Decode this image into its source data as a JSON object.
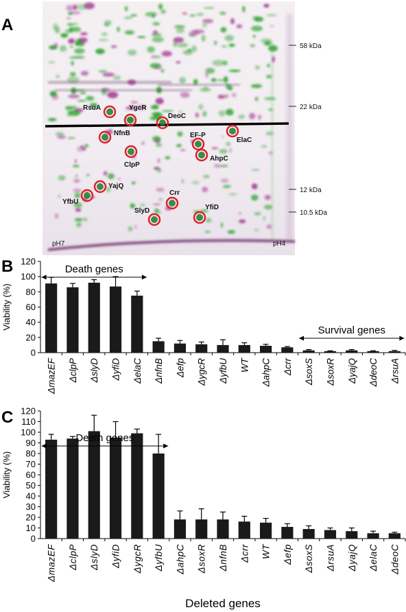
{
  "panels": {
    "a": "A",
    "b": "B",
    "c": "C"
  },
  "gel": {
    "mw_markers": [
      {
        "label": "58 kDa"
      },
      {
        "label": "22 kDa"
      },
      {
        "label": "12 kDa"
      },
      {
        "label": "10.5 kDa"
      }
    ],
    "ph_left": "pH7",
    "ph_right": "pH4",
    "proteins": [
      "RsuA",
      "YgcR",
      "DeoC",
      "NfnB",
      "EF-P",
      "ElaC",
      "ClpP",
      "AhpC",
      "YajQ",
      "YfbU",
      "Crr",
      "SlyD",
      "YfiD"
    ],
    "colors": {
      "green": "#2ca02c",
      "magenta": "#a0308c",
      "circle": "#e0202a",
      "background": "#f3eef3"
    }
  },
  "chart_data": [
    {
      "type": "bar",
      "panel": "B",
      "ylabel": "Viability (%)",
      "ylim": [
        0,
        120
      ],
      "yticks": [
        0,
        20,
        40,
        60,
        80,
        100,
        120
      ],
      "categories": [
        "ΔmazEF",
        "ΔclpP",
        "ΔslyD",
        "ΔyfiD",
        "ΔelaC",
        "ΔnfnB",
        "Δefp",
        "ΔygcR",
        "ΔyfbU",
        "WT",
        "ΔahpC",
        "Δcrr",
        "ΔsoxS",
        "ΔsoxR",
        "ΔyajQ",
        "ΔdeoC",
        "ΔrsuA"
      ],
      "values": [
        91,
        86,
        92,
        87,
        75,
        15,
        12,
        11,
        10,
        10,
        9,
        7,
        3,
        2,
        3,
        2,
        2
      ],
      "errors": [
        8,
        5,
        4,
        13,
        6,
        4,
        4,
        3,
        7,
        3,
        2,
        1,
        1,
        0.5,
        1,
        0.5,
        1
      ],
      "bar_color": "#1a1a1a",
      "annotations": [
        {
          "text": "Death genes",
          "span": [
            "ΔmazEF",
            "ΔelaC"
          ]
        },
        {
          "text": "Survival genes",
          "span": [
            "ΔsoxS",
            "ΔrsuA"
          ]
        }
      ]
    },
    {
      "type": "bar",
      "panel": "C",
      "xlabel": "Deleted genes",
      "ylabel": "Viability (%)",
      "ylim": [
        0,
        120
      ],
      "yticks": [
        0,
        10,
        20,
        30,
        40,
        50,
        60,
        70,
        80,
        90,
        100,
        110,
        120
      ],
      "categories": [
        "ΔmazEF",
        "ΔclpP",
        "ΔslyD",
        "ΔyfiD",
        "ΔygcR",
        "ΔyfbU",
        "ΔahpC",
        "ΔsoxR",
        "ΔnfnB",
        "Δcrr",
        "WT",
        "Δefp",
        "ΔsoxS",
        "ΔrsuA",
        "ΔyajQ",
        "ΔelaC",
        "ΔdeoC"
      ],
      "values": [
        93,
        94,
        101,
        95,
        99,
        80,
        18,
        18,
        18,
        16,
        15,
        11,
        9,
        8,
        7,
        5,
        5
      ],
      "errors": [
        5,
        2,
        15,
        15,
        4,
        18,
        8,
        10,
        7,
        5,
        4,
        3,
        3,
        2,
        3,
        2,
        1
      ],
      "bar_color": "#1a1a1a",
      "annotations": [
        {
          "text": "Death genes",
          "span": [
            "ΔmazEF",
            "ΔyfbU"
          ]
        }
      ]
    }
  ]
}
